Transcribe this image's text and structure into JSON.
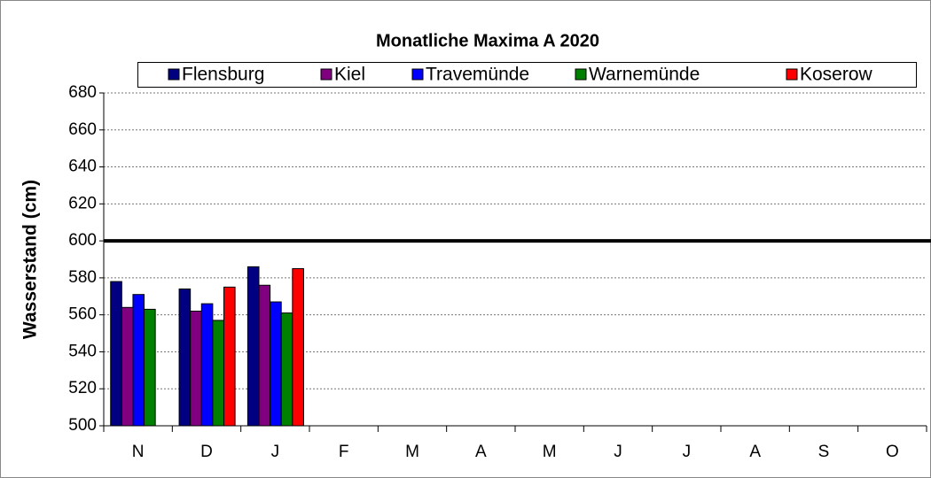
{
  "chart_data": {
    "type": "bar",
    "title": "Monatliche Maxima A 2020",
    "y_label": "Wasserstand (cm)",
    "categories": [
      "N",
      "D",
      "J",
      "F",
      "M",
      "A",
      "M",
      "J",
      "J",
      "A",
      "S",
      "O"
    ],
    "series": [
      {
        "name": "Flensburg",
        "color": "#000080",
        "values": [
          578,
          574,
          586,
          null,
          null,
          null,
          null,
          null,
          null,
          null,
          null,
          null
        ]
      },
      {
        "name": "Kiel",
        "color": "#800080",
        "values": [
          564,
          562,
          576,
          null,
          null,
          null,
          null,
          null,
          null,
          null,
          null,
          null
        ]
      },
      {
        "name": "Travemünde",
        "color": "#0000ff",
        "values": [
          571,
          566,
          567,
          null,
          null,
          null,
          null,
          null,
          null,
          null,
          null,
          null
        ]
      },
      {
        "name": "Warnemünde",
        "color": "#008000",
        "values": [
          563,
          557,
          561,
          null,
          null,
          null,
          null,
          null,
          null,
          null,
          null,
          null
        ]
      },
      {
        "name": "Koserow",
        "color": "#ff0000",
        "values": [
          null,
          575,
          585,
          null,
          null,
          null,
          null,
          null,
          null,
          null,
          null,
          null
        ]
      }
    ],
    "ylim": [
      500,
      680
    ],
    "yticks": [
      500,
      520,
      540,
      560,
      580,
      600,
      620,
      640,
      660,
      680
    ],
    "grid": true,
    "reference_line": 600
  }
}
